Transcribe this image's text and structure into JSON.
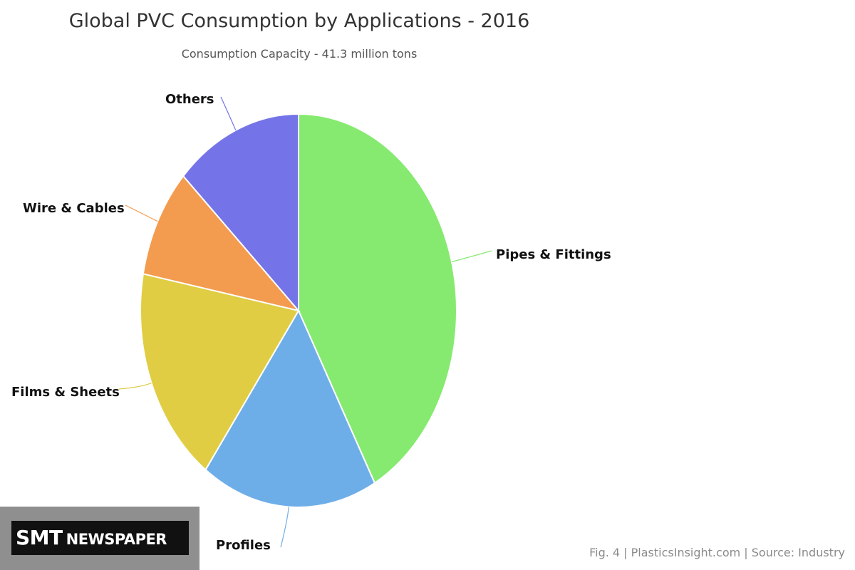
{
  "chart_data": {
    "type": "pie",
    "title": "Global PVC Consumption by Applications - 2016",
    "subtitle": "Consumption Capacity - 41.3 million tons",
    "categories": [
      "Pipes & Fittings",
      "Profiles",
      "Films & Sheets",
      "Wire & Cables",
      "Others"
    ],
    "values": [
      42,
      18,
      18,
      9,
      13
    ],
    "colors": [
      "#86ea70",
      "#6eaee8",
      "#e0cd43",
      "#f39b4e",
      "#7474e8"
    ],
    "legend": "none"
  },
  "caption": "Fig. 4 | PlasticsInsight.com | Source: Industry",
  "logo": {
    "part1": "SMT",
    "part2": "NEWSPAPER"
  }
}
